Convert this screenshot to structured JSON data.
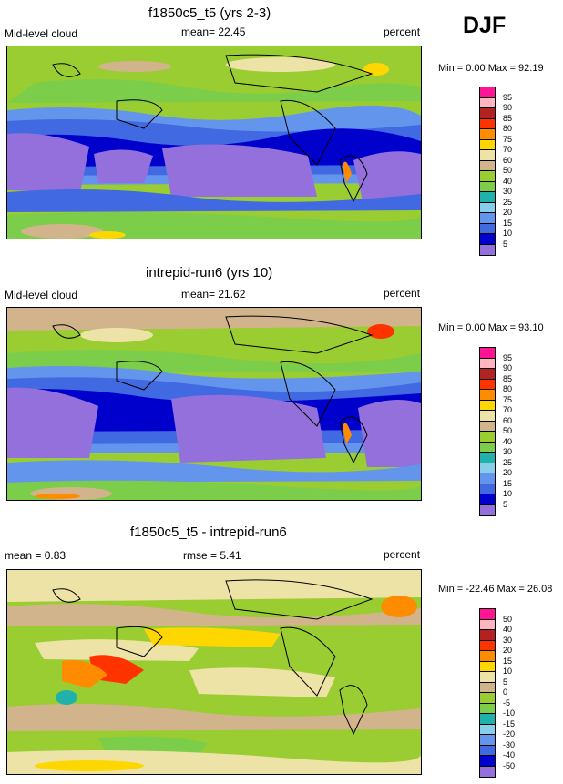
{
  "season": "DJF",
  "panels": [
    {
      "title": "f1850c5_t5 (yrs 2-3)",
      "left_label": "Mid-level cloud",
      "center_label": "mean=  22.45",
      "right_label": "percent",
      "minmax": "Min =   0.00 Max =  92.19",
      "legend": {
        "colors": [
          "#ff1493",
          "#ffb6c1",
          "#b22222",
          "#ff3300",
          "#ff8c00",
          "#ffd700",
          "#ede3a6",
          "#d2b48c",
          "#9acd32",
          "#7ccd4a",
          "#20b2aa",
          "#87ceeb",
          "#6495ed",
          "#4169e1",
          "#0000cd",
          "#9370db"
        ],
        "ticks": [
          "95",
          "90",
          "85",
          "80",
          "75",
          "70",
          "60",
          "50",
          "40",
          "30",
          "25",
          "20",
          "15",
          "10",
          "5"
        ]
      }
    },
    {
      "title": "intrepid-run6 (yrs 10)",
      "left_label": "Mid-level cloud",
      "center_label": "mean=  21.62",
      "right_label": "percent",
      "minmax": "Min =   0.00 Max =  93.10",
      "legend": {
        "colors": [
          "#ff1493",
          "#ffb6c1",
          "#b22222",
          "#ff3300",
          "#ff8c00",
          "#ffd700",
          "#ede3a6",
          "#d2b48c",
          "#9acd32",
          "#7ccd4a",
          "#20b2aa",
          "#87ceeb",
          "#6495ed",
          "#4169e1",
          "#0000cd",
          "#9370db"
        ],
        "ticks": [
          "95",
          "90",
          "85",
          "80",
          "75",
          "70",
          "60",
          "50",
          "40",
          "30",
          "25",
          "20",
          "15",
          "10",
          "5"
        ]
      }
    },
    {
      "title": "f1850c5_t5 - intrepid-run6",
      "left_label": "mean =   0.83",
      "center_label": "rmse =   5.41",
      "right_label": "percent",
      "minmax": "Min = -22.46 Max =  26.08",
      "legend": {
        "colors": [
          "#ff1493",
          "#ffb6c1",
          "#b22222",
          "#ff3300",
          "#ff8c00",
          "#ffd700",
          "#ede3a6",
          "#d2b48c",
          "#9acd32",
          "#7ccd4a",
          "#20b2aa",
          "#87ceeb",
          "#6495ed",
          "#4169e1",
          "#0000cd",
          "#9370db"
        ],
        "ticks": [
          "50",
          "40",
          "30",
          "20",
          "15",
          "10",
          "5",
          "0",
          "-5",
          "-10",
          "-15",
          "-20",
          "-30",
          "-40",
          "-50"
        ]
      }
    }
  ]
}
